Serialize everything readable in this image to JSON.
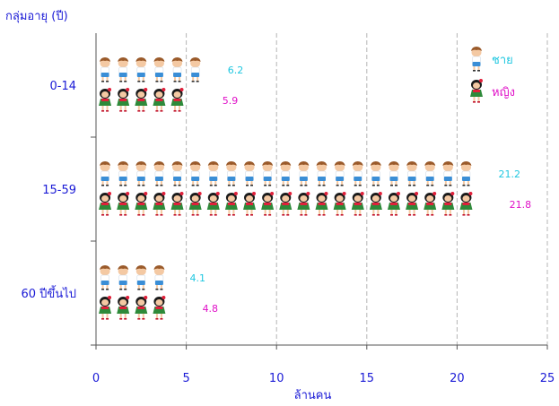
{
  "chart_data": {
    "type": "bar",
    "orientation": "horizontal",
    "ylabel": "กลุ่มอายุ (ปี)",
    "xlabel": "ล้านคน",
    "categories": [
      "0-14",
      "15-59",
      "60 ปีขึ้นไป"
    ],
    "xlim": [
      0,
      25
    ],
    "xticks": [
      "0",
      "5",
      "10",
      "15",
      "20",
      "25"
    ],
    "grid": "vertical dashed",
    "legend_position": "top-right",
    "series": [
      {
        "name": "ชาย",
        "values": [
          6.2,
          21.2,
          4.1
        ],
        "color": "#1fc7e0",
        "icon": "boy-figure-icon"
      },
      {
        "name": "หญิง",
        "values": [
          5.9,
          21.8,
          4.8
        ],
        "color": "#e010c8",
        "icon": "girl-figure-icon"
      }
    ]
  }
}
